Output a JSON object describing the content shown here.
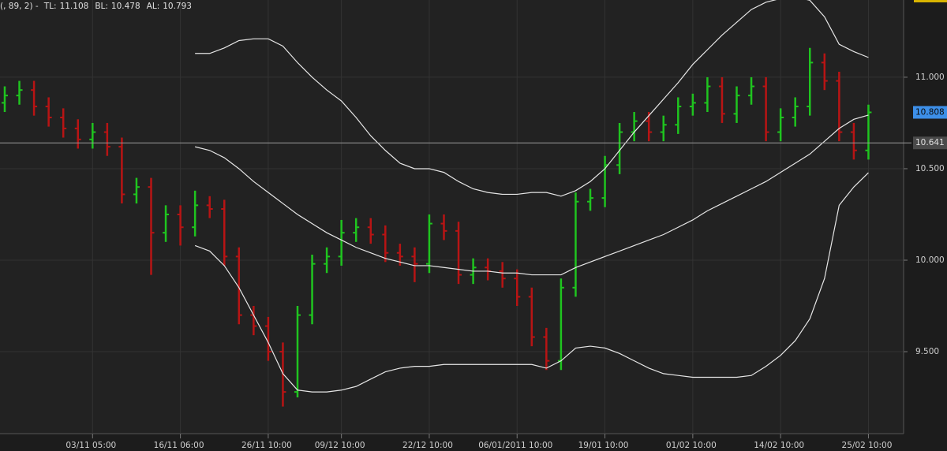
{
  "chart_data": {
    "type": "ohlc",
    "header": {
      "text": "(, 89, 2) -",
      "items": [
        {
          "label": "TL:",
          "value": 11.108
        },
        {
          "label": "BL:",
          "value": 10.478
        },
        {
          "label": "AL:",
          "value": 10.793
        }
      ]
    },
    "categories": [
      null,
      null,
      null,
      null,
      null,
      null,
      "03/11 05:00",
      null,
      null,
      null,
      null,
      null,
      "16/11 06:00",
      null,
      null,
      null,
      null,
      null,
      "26/11 10:00",
      null,
      null,
      null,
      null,
      "09/12 10:00",
      null,
      null,
      null,
      null,
      null,
      "22/12 10:00",
      null,
      null,
      null,
      null,
      null,
      "06/01/2011 10:00",
      null,
      null,
      null,
      null,
      null,
      "19/01 10:00",
      null,
      null,
      null,
      null,
      null,
      "01/02 10:00",
      null,
      null,
      null,
      null,
      null,
      "14/02 10:00",
      null,
      null,
      null,
      null,
      null,
      "25/02 10:00"
    ],
    "open": [
      10.86,
      10.9,
      10.93,
      10.84,
      10.78,
      10.72,
      10.66,
      10.7,
      10.62,
      10.36,
      10.4,
      10.15,
      10.25,
      10.18,
      10.3,
      10.28,
      10.02,
      9.7,
      9.64,
      9.5,
      9.28,
      9.7,
      9.98,
      10.02,
      10.15,
      10.18,
      10.14,
      10.04,
      10.02,
      9.98,
      10.2,
      10.16,
      9.92,
      9.96,
      9.94,
      9.9,
      9.8,
      9.58,
      9.45,
      9.85,
      10.32,
      10.34,
      10.52,
      10.7,
      10.76,
      10.7,
      10.74,
      10.84,
      10.86,
      10.95,
      10.8,
      10.9,
      10.95,
      10.7,
      10.78,
      10.84,
      11.08,
      10.98,
      10.7,
      10.6
    ],
    "high": [
      10.95,
      10.98,
      10.98,
      10.89,
      10.83,
      10.77,
      10.75,
      10.75,
      10.67,
      10.45,
      10.45,
      10.3,
      10.3,
      10.38,
      10.35,
      10.33,
      10.07,
      9.75,
      9.69,
      9.55,
      9.75,
      10.03,
      10.07,
      10.22,
      10.23,
      10.23,
      10.19,
      10.09,
      10.07,
      10.25,
      10.25,
      10.21,
      10.01,
      10.01,
      9.99,
      9.95,
      9.85,
      9.63,
      9.9,
      10.37,
      10.39,
      10.57,
      10.75,
      10.81,
      10.81,
      10.79,
      10.89,
      10.91,
      11.0,
      11.0,
      10.95,
      11.0,
      11.0,
      10.83,
      10.89,
      11.16,
      11.13,
      11.03,
      10.75,
      10.85
    ],
    "low": [
      10.81,
      10.85,
      10.79,
      10.73,
      10.67,
      10.61,
      10.61,
      10.57,
      10.31,
      10.31,
      9.92,
      10.1,
      10.08,
      10.13,
      10.23,
      9.97,
      9.65,
      9.59,
      9.45,
      9.2,
      9.25,
      9.65,
      9.93,
      9.97,
      10.1,
      10.09,
      9.99,
      9.97,
      9.88,
      9.93,
      10.11,
      9.87,
      9.87,
      9.89,
      9.85,
      9.75,
      9.53,
      9.4,
      9.4,
      9.8,
      10.27,
      10.29,
      10.47,
      10.65,
      10.65,
      10.65,
      10.69,
      10.79,
      10.81,
      10.75,
      10.75,
      10.85,
      10.65,
      10.65,
      10.73,
      10.79,
      10.93,
      10.65,
      10.55,
      10.55
    ],
    "close": [
      10.9,
      10.93,
      10.84,
      10.78,
      10.72,
      10.66,
      10.7,
      10.62,
      10.36,
      10.4,
      10.15,
      10.25,
      10.18,
      10.3,
      10.28,
      10.02,
      9.7,
      9.64,
      9.5,
      9.28,
      9.7,
      9.98,
      10.02,
      10.15,
      10.18,
      10.14,
      10.04,
      10.02,
      9.98,
      10.2,
      10.16,
      9.92,
      9.96,
      9.94,
      9.9,
      9.8,
      9.58,
      9.45,
      9.85,
      10.32,
      10.34,
      10.52,
      10.7,
      10.76,
      10.7,
      10.74,
      10.84,
      10.86,
      10.95,
      10.8,
      10.9,
      10.95,
      10.7,
      10.78,
      10.84,
      11.08,
      10.98,
      10.7,
      10.6,
      10.808
    ],
    "up_color": "#1fc41f",
    "down_color": "#b81414",
    "series": [
      {
        "color": "#e6e6e6",
        "values": [
          null,
          null,
          null,
          null,
          null,
          null,
          null,
          null,
          null,
          null,
          null,
          null,
          null,
          11.13,
          11.13,
          11.16,
          11.2,
          11.21,
          11.21,
          11.17,
          11.08,
          11.0,
          10.93,
          10.87,
          10.78,
          10.68,
          10.6,
          10.53,
          10.5,
          10.5,
          10.48,
          10.43,
          10.39,
          10.37,
          10.36,
          10.36,
          10.37,
          10.37,
          10.35,
          10.38,
          10.43,
          10.5,
          10.6,
          10.7,
          10.79,
          10.88,
          10.97,
          11.07,
          11.15,
          11.23,
          11.3,
          11.37,
          11.41,
          11.43,
          11.44,
          11.42,
          11.33,
          11.18,
          11.14,
          11.108
        ]
      },
      {
        "color": "#e6e6e6",
        "values": [
          null,
          null,
          null,
          null,
          null,
          null,
          null,
          null,
          null,
          null,
          null,
          null,
          null,
          10.62,
          10.6,
          10.56,
          10.5,
          10.43,
          10.37,
          10.31,
          10.25,
          10.2,
          10.15,
          10.11,
          10.07,
          10.04,
          10.01,
          9.99,
          9.97,
          9.97,
          9.96,
          9.95,
          9.94,
          9.94,
          9.93,
          9.93,
          9.92,
          9.92,
          9.92,
          9.96,
          9.99,
          10.02,
          10.05,
          10.08,
          10.11,
          10.14,
          10.18,
          10.22,
          10.27,
          10.31,
          10.35,
          10.39,
          10.43,
          10.48,
          10.53,
          10.58,
          10.65,
          10.72,
          10.77,
          10.793
        ]
      },
      {
        "color": "#e6e6e6",
        "values": [
          null,
          null,
          null,
          null,
          null,
          null,
          null,
          null,
          null,
          null,
          null,
          null,
          null,
          10.08,
          10.05,
          9.97,
          9.85,
          9.7,
          9.55,
          9.38,
          9.29,
          9.28,
          9.28,
          9.29,
          9.31,
          9.35,
          9.39,
          9.41,
          9.42,
          9.42,
          9.43,
          9.43,
          9.43,
          9.43,
          9.43,
          9.43,
          9.43,
          9.41,
          9.45,
          9.52,
          9.53,
          9.52,
          9.49,
          9.45,
          9.41,
          9.38,
          9.37,
          9.36,
          9.36,
          9.36,
          9.36,
          9.37,
          9.42,
          9.48,
          9.56,
          9.68,
          9.9,
          10.3,
          10.4,
          10.478
        ]
      }
    ],
    "ylim": [
      9.052,
      11.422
    ],
    "yticks": [
      {
        "value": 9.5,
        "label": "9.500"
      },
      {
        "value": 10,
        "label": "10.000"
      },
      {
        "value": 10.5,
        "label": "10.500"
      },
      {
        "value": 11,
        "label": "11.000"
      }
    ],
    "reference_line": {
      "value": 10.641,
      "color": "#9a9a9a"
    },
    "last_price_color": "#3d8fe8",
    "grid": true
  }
}
